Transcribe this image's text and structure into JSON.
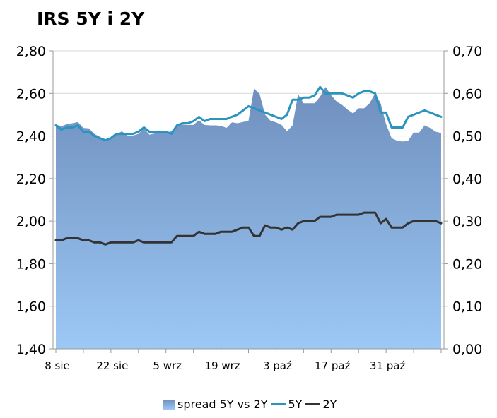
{
  "chart_data": {
    "type": "line",
    "title": "IRS 5Y i 2Y",
    "x_tick_labels": [
      "8 sie",
      "22 sie",
      "5 wrz",
      "19 wrz",
      "3 paź",
      "17 paź",
      "31 paź"
    ],
    "y_left": {
      "ylim": [
        1.4,
        2.8
      ],
      "ticks": [
        "1,40",
        "1,60",
        "1,80",
        "2,00",
        "2,20",
        "2,40",
        "2,60",
        "2,80"
      ]
    },
    "y_right": {
      "ylim": [
        0.0,
        0.7
      ],
      "ticks": [
        "0,00",
        "0,10",
        "0,20",
        "0,30",
        "0,40",
        "0,50",
        "0,60",
        "0,70"
      ]
    },
    "grid": "horizontal",
    "legend_position": "bottom",
    "series": [
      {
        "name": "spread 5Y vs 2Y",
        "axis": "right",
        "kind": "area",
        "color": "#7a9cc8",
        "values": [
          0.527,
          0.523,
          0.528,
          0.53,
          0.533,
          0.519,
          0.518,
          0.505,
          0.498,
          0.49,
          0.494,
          0.504,
          0.511,
          0.501,
          0.501,
          0.505,
          0.518,
          0.503,
          0.506,
          0.506,
          0.507,
          0.511,
          0.528,
          0.527,
          0.526,
          0.526,
          0.537,
          0.526,
          0.525,
          0.525,
          0.524,
          0.519,
          0.532,
          0.53,
          0.533,
          0.536,
          0.611,
          0.599,
          0.55,
          0.536,
          0.532,
          0.526,
          0.511,
          0.525,
          0.598,
          0.577,
          0.577,
          0.577,
          0.592,
          0.615,
          0.596,
          0.581,
          0.573,
          0.562,
          0.553,
          0.565,
          0.565,
          0.577,
          0.6,
          0.577,
          0.528,
          0.495,
          0.489,
          0.487,
          0.489,
          0.508,
          0.508,
          0.525,
          0.519,
          0.51,
          0.507
        ]
      },
      {
        "name": "5Y",
        "axis": "left",
        "kind": "line",
        "color": "#2a93be",
        "values": [
          2.45,
          2.43,
          2.44,
          2.44,
          2.45,
          2.42,
          2.42,
          2.4,
          2.39,
          2.38,
          2.39,
          2.41,
          2.41,
          2.41,
          2.41,
          2.42,
          2.44,
          2.42,
          2.42,
          2.42,
          2.42,
          2.41,
          2.45,
          2.46,
          2.46,
          2.47,
          2.49,
          2.47,
          2.48,
          2.48,
          2.48,
          2.48,
          2.49,
          2.5,
          2.52,
          2.54,
          2.53,
          2.52,
          2.51,
          2.5,
          2.49,
          2.48,
          2.5,
          2.57,
          2.57,
          2.58,
          2.58,
          2.59,
          2.63,
          2.6,
          2.6,
          2.6,
          2.6,
          2.59,
          2.58,
          2.6,
          2.61,
          2.61,
          2.6,
          2.51,
          2.51,
          2.44,
          2.44,
          2.44,
          2.49,
          2.5,
          2.51,
          2.52,
          2.51,
          2.5,
          2.49
        ]
      },
      {
        "name": "2Y",
        "axis": "left",
        "kind": "line",
        "color": "#333333",
        "values": [
          1.91,
          1.91,
          1.92,
          1.92,
          1.92,
          1.91,
          1.91,
          1.9,
          1.9,
          1.89,
          1.9,
          1.9,
          1.9,
          1.9,
          1.9,
          1.91,
          1.9,
          1.9,
          1.9,
          1.9,
          1.9,
          1.9,
          1.93,
          1.93,
          1.93,
          1.93,
          1.95,
          1.94,
          1.94,
          1.94,
          1.95,
          1.95,
          1.95,
          1.96,
          1.97,
          1.97,
          1.93,
          1.93,
          1.98,
          1.97,
          1.97,
          1.96,
          1.97,
          1.96,
          1.99,
          2.0,
          2.0,
          2.0,
          2.02,
          2.02,
          2.02,
          2.03,
          2.03,
          2.03,
          2.03,
          2.03,
          2.04,
          2.04,
          2.04,
          1.99,
          2.01,
          1.97,
          1.97,
          1.97,
          1.99,
          2.0,
          2.0,
          2.0,
          2.0,
          2.0,
          1.99
        ]
      }
    ]
  }
}
